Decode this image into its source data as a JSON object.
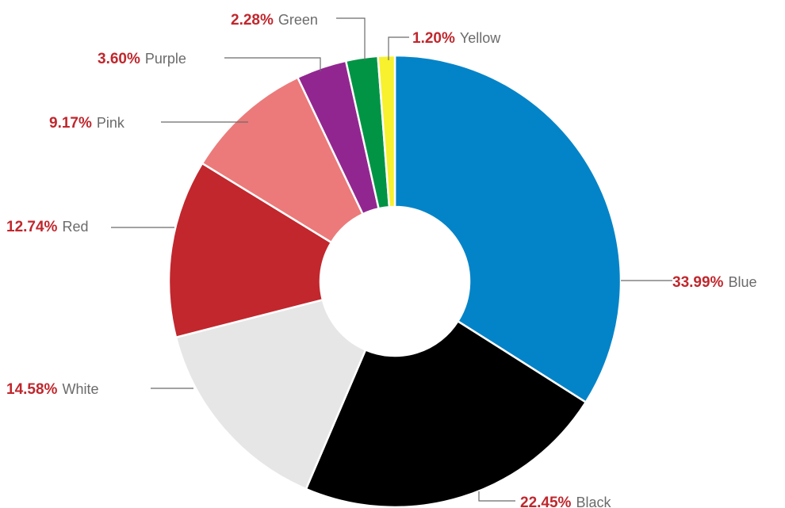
{
  "chart_data": {
    "type": "pie",
    "donut": true,
    "categories": [
      "Blue",
      "Black",
      "White",
      "Red",
      "Pink",
      "Purple",
      "Green",
      "Yellow"
    ],
    "values": [
      33.99,
      22.45,
      14.58,
      12.74,
      9.17,
      3.6,
      2.28,
      1.2
    ],
    "value_labels": [
      "33.99%",
      "22.45%",
      "14.58%",
      "12.74%",
      "9.17%",
      "3.60%",
      "2.28%",
      "1.20%"
    ],
    "colors": [
      "#0484c8",
      "#000000",
      "#e6e6e6",
      "#c1272d",
      "#ec7a7a",
      "#922690",
      "#009444",
      "#f7f12e"
    ],
    "label_color": "#c0272d",
    "category_text_color": "#6b6b6b",
    "start": "12 o'clock",
    "direction": "clockwise",
    "legend": "none"
  }
}
